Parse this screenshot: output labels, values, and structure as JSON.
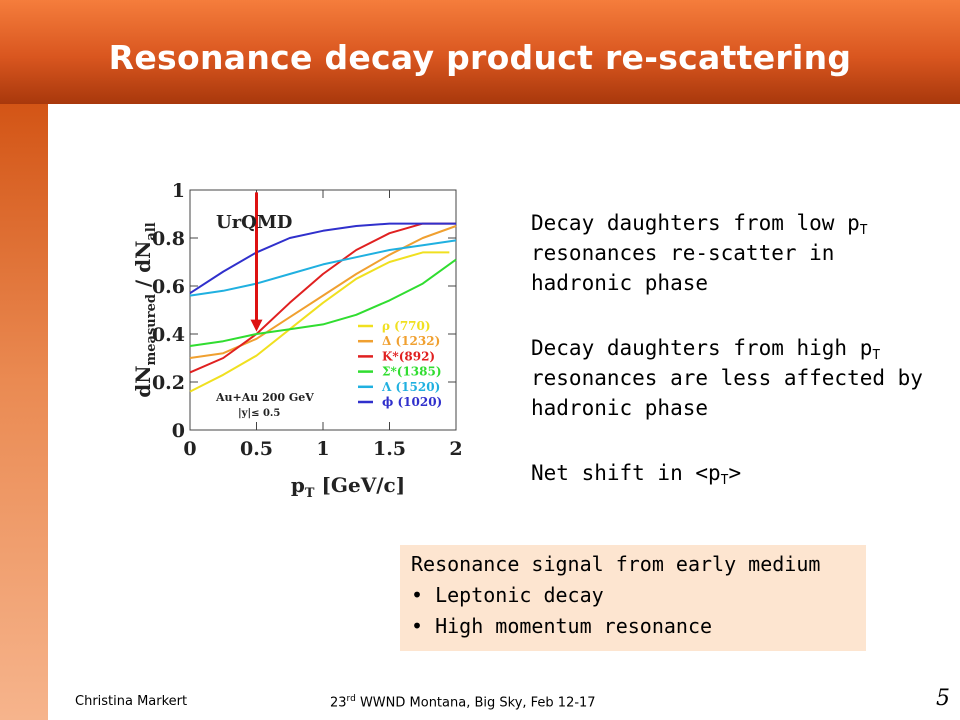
{
  "slide": {
    "title": "Resonance decay product re-scattering",
    "footer_author": "Christina Markert",
    "footer_conf_prefix": "23",
    "footer_conf_sup": "rd",
    "footer_conf_rest": " WWND Montana, Big Sky, Feb  12-17",
    "page_number": "5"
  },
  "text": {
    "p1_a": "Decay daughters from low p",
    "p1_sub": "T",
    "p1_b": " resonances re-scatter in hadronic phase",
    "p2_a": "Decay daughters from high p",
    "p2_sub": "T",
    "p2_b": " resonances are less affected by hadronic phase",
    "p3_a": "Net shift in <p",
    "p3_sub": "T",
    "p3_b": ">"
  },
  "note": {
    "line1": "Resonance signal from early medium",
    "line2": "• Leptonic decay",
    "line3": "• High momentum resonance"
  },
  "chart_data": {
    "type": "line",
    "title": "UrQMD",
    "annotation_system": "Au+Au 200 GeV",
    "annotation_cut": "|y|≤ 0.5",
    "xlabel_main": "p",
    "xlabel_sub": "T",
    "xlabel_unit": " [GeV/c]",
    "ylabel_main": "dN",
    "ylabel_sub1": "measured",
    "ylabel_mid": " / dN",
    "ylabel_sub2": "all",
    "xlim": [
      0,
      2
    ],
    "ylim": [
      0,
      1
    ],
    "x_ticks": [
      0,
      0.5,
      1,
      1.5,
      2
    ],
    "x_tick_labels": [
      "0",
      "0.5",
      "1",
      "1.5",
      "2"
    ],
    "y_ticks": [
      0,
      0.2,
      0.4,
      0.6,
      0.8,
      1
    ],
    "y_tick_labels": [
      "0",
      "0.2",
      "0.4",
      "0.6",
      "0.8",
      "1"
    ],
    "arrow": {
      "x": 0.5,
      "y_from": 0.99,
      "y_to": 0.41,
      "color": "#dd1111"
    },
    "series": [
      {
        "name": "ρ (770)",
        "color": "#f0e020",
        "x": [
          0,
          0.25,
          0.5,
          0.75,
          1,
          1.25,
          1.5,
          1.75,
          1.95
        ],
        "y": [
          0.16,
          0.23,
          0.31,
          0.42,
          0.53,
          0.63,
          0.7,
          0.74,
          0.74
        ]
      },
      {
        "name": "Δ (1232)",
        "color": "#f0a030",
        "x": [
          0,
          0.25,
          0.5,
          0.75,
          1,
          1.25,
          1.5,
          1.75,
          2
        ],
        "y": [
          0.3,
          0.32,
          0.38,
          0.47,
          0.56,
          0.65,
          0.73,
          0.8,
          0.85
        ]
      },
      {
        "name": "K*(892)",
        "color": "#e02020",
        "x": [
          0,
          0.25,
          0.5,
          0.75,
          1,
          1.25,
          1.5,
          1.75,
          2
        ],
        "y": [
          0.24,
          0.3,
          0.4,
          0.53,
          0.65,
          0.75,
          0.82,
          0.86,
          0.86
        ]
      },
      {
        "name": "Σ*(1385)",
        "color": "#30dd30",
        "x": [
          0,
          0.25,
          0.5,
          0.75,
          1,
          1.25,
          1.5,
          1.75,
          2
        ],
        "y": [
          0.35,
          0.37,
          0.4,
          0.42,
          0.44,
          0.48,
          0.54,
          0.61,
          0.71
        ]
      },
      {
        "name": "Λ (1520)",
        "color": "#20b0e0",
        "x": [
          0,
          0.25,
          0.5,
          0.75,
          1,
          1.25,
          1.5,
          1.75,
          2
        ],
        "y": [
          0.56,
          0.58,
          0.61,
          0.65,
          0.69,
          0.72,
          0.75,
          0.77,
          0.79
        ]
      },
      {
        "name": "ϕ (1020)",
        "color": "#3030cc",
        "x": [
          0,
          0.25,
          0.5,
          0.75,
          1,
          1.25,
          1.5,
          1.75,
          2
        ],
        "y": [
          0.57,
          0.66,
          0.74,
          0.8,
          0.83,
          0.85,
          0.86,
          0.86,
          0.86
        ]
      }
    ]
  }
}
